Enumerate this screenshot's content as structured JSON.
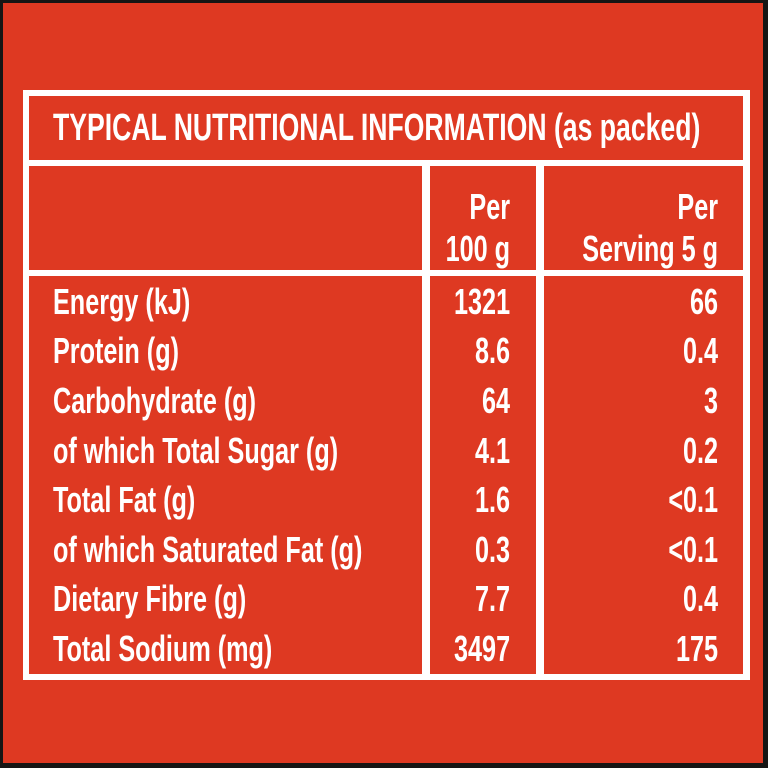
{
  "label": {
    "title": "TYPICAL NUTRITIONAL INFORMATION (as packed)",
    "header": {
      "per_100_line1": "Per",
      "per_100_line2": "100 g",
      "per_serving_line1": "Per",
      "per_serving_line2": "Serving 5 g"
    },
    "rows": [
      {
        "name": "Energy (kJ)",
        "per_100g": "1321",
        "per_serving": "66"
      },
      {
        "name": "Protein (g)",
        "per_100g": "8.6",
        "per_serving": "0.4"
      },
      {
        "name": "Carbohydrate (g)",
        "per_100g": "64",
        "per_serving": "3"
      },
      {
        "name": "of which Total Sugar (g)",
        "per_100g": "4.1",
        "per_serving": "0.2"
      },
      {
        "name": "Total Fat (g)",
        "per_100g": "1.6",
        "per_serving": "<0.1"
      },
      {
        "name": "of which Saturated Fat (g)",
        "per_100g": "0.3",
        "per_serving": "<0.1"
      },
      {
        "name": "Dietary Fibre (g)",
        "per_100g": "7.7",
        "per_serving": "0.4"
      },
      {
        "name": "Total Sodium (mg)",
        "per_100g": "3497",
        "per_serving": "175"
      }
    ],
    "colors": {
      "background_red": "#DE3922",
      "grid_white": "#FFFFFF",
      "photo_edge_black": "#161514",
      "text_white": "#FFFFFF"
    }
  }
}
